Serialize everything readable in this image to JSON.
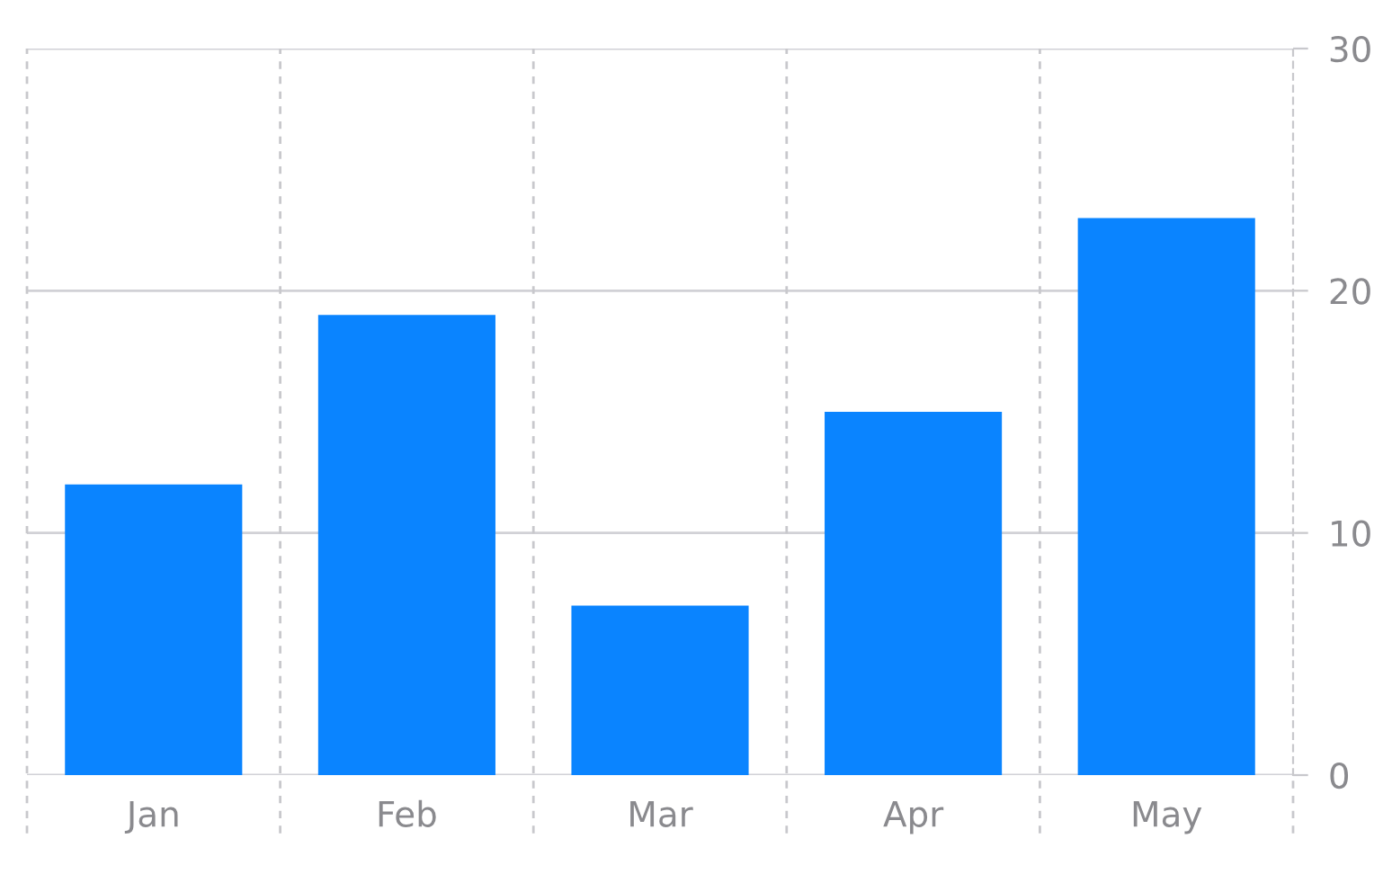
{
  "chart_data": {
    "type": "bar",
    "categories": [
      "Jan",
      "Feb",
      "Mar",
      "Apr",
      "May"
    ],
    "values": [
      12,
      19,
      7,
      15,
      23
    ],
    "color": "#0a84ff",
    "ylim": [
      0,
      30
    ],
    "yticks": [
      0,
      10,
      20,
      30
    ],
    "grid": true
  }
}
